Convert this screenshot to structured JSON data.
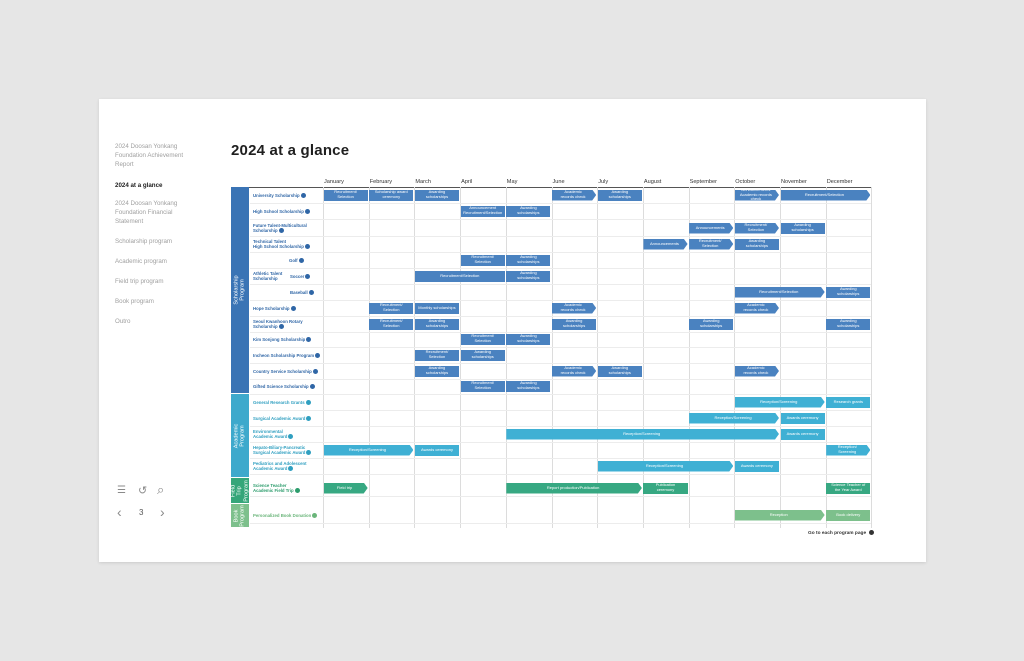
{
  "nav": [
    {
      "label": "2024 Doosan Yonkang\nFoundation Achievement\nReport",
      "active": false
    },
    {
      "label": "2024 at a glance",
      "active": true
    },
    {
      "label": "2024 Doosan Yonkang\nFoundation Financial\nStatement",
      "active": false
    },
    {
      "label": "Scholarship program",
      "active": false
    },
    {
      "label": "Academic program",
      "active": false
    },
    {
      "label": "Field trip program",
      "active": false
    },
    {
      "label": "Book program",
      "active": false
    },
    {
      "label": "Outro",
      "active": false
    }
  ],
  "tools": {
    "page": "3",
    "menu_icon": "☰",
    "refresh_icon": "↺",
    "search_icon": "⌕",
    "prev_icon": "‹",
    "next_icon": "›"
  },
  "title": "2024 at a glance",
  "months": [
    "January",
    "February",
    "March",
    "April",
    "May",
    "June",
    "July",
    "August",
    "September",
    "October",
    "November",
    "December"
  ],
  "categories": [
    {
      "label": "Scholarship Program",
      "color": "#3a74b5",
      "rows": [
        0,
        13
      ]
    },
    {
      "label": "Academic Program",
      "color": "#3ea9cc",
      "rows": [
        14,
        18
      ]
    },
    {
      "label": "Field Trip\nProgram",
      "color": "#35a679",
      "rows": [
        19,
        19
      ]
    },
    {
      "label": "Book\nProgram",
      "color": "#7dc08c",
      "rows": [
        20,
        20
      ]
    }
  ],
  "rows": [
    {
      "label": "University Scholarship",
      "color": "blue",
      "arrow": true
    },
    {
      "label": "High School Scholarship",
      "color": "blue",
      "arrow": true
    },
    {
      "label": "Future Talent-Multicultural\nScholarship",
      "color": "blue",
      "arrow": true
    },
    {
      "label": "Technical Talent\nHigh School Scholarship",
      "color": "blue",
      "arrow": true
    },
    {
      "label": "Athletic Talent\nScholarship",
      "color": "blue",
      "arrow": false,
      "sub": [
        {
          "label": "Golf",
          "arrow": true
        },
        {
          "label": "Soccer",
          "arrow": true
        },
        {
          "label": "Baseball",
          "arrow": true
        }
      ]
    },
    {
      "label": "Hope Scholarship",
      "color": "blue",
      "arrow": true
    },
    {
      "label": "Seoul Kwanhoon Rotary\nScholarship",
      "color": "blue",
      "arrow": true
    },
    {
      "label": "Kim Sonjong Scholarship",
      "color": "blue",
      "arrow": true
    },
    {
      "label": "Incheon Scholarship Program",
      "color": "blue",
      "arrow": true
    },
    {
      "label": "Country Service Scholarship",
      "color": "blue",
      "arrow": true
    },
    {
      "label": "Gifted Science Scholarship",
      "color": "blue",
      "arrow": true
    },
    {
      "label": "General Research Grants",
      "color": "teal",
      "arrow": true
    },
    {
      "label": "Surgical Academic Award",
      "color": "teal",
      "arrow": true
    },
    {
      "label": "Environmental\nAcademic Award",
      "color": "teal",
      "arrow": true
    },
    {
      "label": "Hepato-Biliary-Pancreatic\nSurgical Academic Award",
      "color": "teal",
      "arrow": true
    },
    {
      "label": "Pediatrics and Adolescent\nAcademic Award",
      "color": "teal",
      "arrow": true
    },
    {
      "label": "Science Teacher\nAcademic Field Trip",
      "color": "green",
      "arrow": true
    },
    {
      "label": "Personalized Book Donation",
      "color": "lgreen",
      "arrow": true
    }
  ],
  "bars": [
    {
      "row": 0,
      "start": 0,
      "end": 1,
      "label": "Recruitment/\nSelection",
      "color": "#4a82c0"
    },
    {
      "row": 0,
      "start": 1,
      "end": 2,
      "label": "Scholarship award\nceremony",
      "color": "#4a82c0"
    },
    {
      "row": 0,
      "start": 2,
      "end": 3,
      "label": "Awarding\nscholarships",
      "color": "#4a82c0"
    },
    {
      "row": 0,
      "start": 5,
      "end": 6,
      "label": "Academic\nrecords check",
      "color": "#4a82c0",
      "arrow": true
    },
    {
      "row": 0,
      "start": 6,
      "end": 7,
      "label": "Awarding\nscholarships",
      "color": "#4a82c0"
    },
    {
      "row": 0,
      "start": 9,
      "end": 10,
      "label": "Announcements\nAcademic records check",
      "color": "#4a82c0",
      "arrow": true
    },
    {
      "row": 0,
      "start": 10,
      "end": 12,
      "label": "Recruitment/Selection",
      "color": "#4a82c0",
      "arrow": true
    },
    {
      "row": 1,
      "start": 3,
      "end": 4,
      "label": "Announcement\nRecruitment/Selection",
      "color": "#4a82c0"
    },
    {
      "row": 1,
      "start": 4,
      "end": 5,
      "label": "Awarding\nscholarships",
      "color": "#4a82c0"
    },
    {
      "row": 2,
      "start": 8,
      "end": 9,
      "label": "Announcements",
      "color": "#4a82c0",
      "arrow": true
    },
    {
      "row": 2,
      "start": 9,
      "end": 10,
      "label": "Recruitment/\nSelection",
      "color": "#4a82c0",
      "arrow": true
    },
    {
      "row": 2,
      "start": 10,
      "end": 11,
      "label": "Awarding\nscholarships",
      "color": "#4a82c0"
    },
    {
      "row": 3,
      "start": 7,
      "end": 8,
      "label": "Announcements",
      "color": "#4a82c0",
      "arrow": true
    },
    {
      "row": 3,
      "start": 8,
      "end": 9,
      "label": "Recruitment/\nSelection",
      "color": "#4a82c0",
      "arrow": true
    },
    {
      "row": 3,
      "start": 9,
      "end": 10,
      "label": "Awarding\nscholarships",
      "color": "#4a82c0"
    },
    {
      "row": 4,
      "sub": 0,
      "start": 3,
      "end": 4,
      "label": "Recruitment/\nSelection",
      "color": "#4a82c0"
    },
    {
      "row": 4,
      "sub": 0,
      "start": 4,
      "end": 5,
      "label": "Awarding\nscholarships",
      "color": "#4a82c0"
    },
    {
      "row": 4,
      "sub": 1,
      "start": 2,
      "end": 4,
      "label": "Recruitment/Selection",
      "color": "#4a82c0"
    },
    {
      "row": 4,
      "sub": 1,
      "start": 4,
      "end": 5,
      "label": "Awarding\nscholarships",
      "color": "#4a82c0"
    },
    {
      "row": 4,
      "sub": 2,
      "start": 9,
      "end": 11,
      "label": "Recruitment/Selection",
      "color": "#4a82c0",
      "arrow": true
    },
    {
      "row": 4,
      "sub": 2,
      "start": 11,
      "end": 12,
      "label": "Awarding\nscholarships",
      "color": "#4a82c0"
    },
    {
      "row": 5,
      "start": 1,
      "end": 2,
      "label": "Recruitment/\nSelection",
      "color": "#4a82c0"
    },
    {
      "row": 5,
      "start": 2,
      "end": 3,
      "label": "Monthly scholarships",
      "color": "#4a82c0"
    },
    {
      "row": 5,
      "start": 5,
      "end": 6,
      "label": "Academic\nrecords check",
      "color": "#4a82c0",
      "arrow": true
    },
    {
      "row": 5,
      "start": 9,
      "end": 10,
      "label": "Academic\nrecords check",
      "color": "#4a82c0",
      "arrow": true
    },
    {
      "row": 6,
      "start": 1,
      "end": 2,
      "label": "Recruitment/\nSelection",
      "color": "#4a82c0"
    },
    {
      "row": 6,
      "start": 2,
      "end": 3,
      "label": "Awarding\nscholarships",
      "color": "#4a82c0"
    },
    {
      "row": 6,
      "start": 5,
      "end": 6,
      "label": "Awarding\nscholarships",
      "color": "#4a82c0"
    },
    {
      "row": 6,
      "start": 8,
      "end": 9,
      "label": "Awarding\nscholarships",
      "color": "#4a82c0"
    },
    {
      "row": 6,
      "start": 11,
      "end": 12,
      "label": "Awarding\nscholarships",
      "color": "#4a82c0"
    },
    {
      "row": 7,
      "start": 3,
      "end": 4,
      "label": "Recruitment/\nSelection",
      "color": "#4a82c0"
    },
    {
      "row": 7,
      "start": 4,
      "end": 5,
      "label": "Awarding\nscholarships",
      "color": "#4a82c0"
    },
    {
      "row": 8,
      "start": 2,
      "end": 3,
      "label": "Recruitment/\nSelection",
      "color": "#4a82c0"
    },
    {
      "row": 8,
      "start": 3,
      "end": 4,
      "label": "Awarding\nscholarships",
      "color": "#4a82c0"
    },
    {
      "row": 9,
      "start": 2,
      "end": 3,
      "label": "Awarding\nscholarships",
      "color": "#4a82c0"
    },
    {
      "row": 9,
      "start": 5,
      "end": 6,
      "label": "Academic\nrecords check",
      "color": "#4a82c0",
      "arrow": true
    },
    {
      "row": 9,
      "start": 6,
      "end": 7,
      "label": "Awarding\nscholarships",
      "color": "#4a82c0"
    },
    {
      "row": 9,
      "start": 9,
      "end": 10,
      "label": "Academic\nrecords check",
      "color": "#4a82c0",
      "arrow": true
    },
    {
      "row": 10,
      "start": 3,
      "end": 4,
      "label": "Recruitment/\nSelection",
      "color": "#4a82c0"
    },
    {
      "row": 10,
      "start": 4,
      "end": 5,
      "label": "Awarding\nscholarships",
      "color": "#4a82c0"
    },
    {
      "row": 11,
      "start": 9,
      "end": 11,
      "label": "Reception/Screening",
      "color": "#3fb0d4",
      "arrow": true
    },
    {
      "row": 11,
      "start": 11,
      "end": 12,
      "label": "Research grants",
      "color": "#3fb0d4"
    },
    {
      "row": 12,
      "start": 8,
      "end": 10,
      "label": "Reception/Screening",
      "color": "#3fb0d4",
      "arrow": true
    },
    {
      "row": 12,
      "start": 10,
      "end": 11,
      "label": "Awards ceremony",
      "color": "#3fb0d4"
    },
    {
      "row": 13,
      "start": 4,
      "end": 10,
      "label": "Reception/Screening",
      "color": "#3fb0d4",
      "arrow": true
    },
    {
      "row": 13,
      "start": 10,
      "end": 11,
      "label": "Awards ceremony",
      "color": "#3fb0d4"
    },
    {
      "row": 14,
      "start": 0,
      "end": 2,
      "label": "Reception/Screening",
      "color": "#3fb0d4",
      "arrow": true
    },
    {
      "row": 14,
      "start": 2,
      "end": 3,
      "label": "Awards ceremony",
      "color": "#3fb0d4"
    },
    {
      "row": 14,
      "start": 11,
      "end": 12,
      "label": "Reception/\nScreening",
      "color": "#3fb0d4",
      "arrow": true
    },
    {
      "row": 15,
      "start": 6,
      "end": 9,
      "label": "Reception/Screening",
      "color": "#3fb0d4",
      "arrow": true
    },
    {
      "row": 15,
      "start": 9,
      "end": 10,
      "label": "Awards ceremony",
      "color": "#3fb0d4"
    },
    {
      "row": 16,
      "start": 0,
      "end": 1,
      "label": "Field trip",
      "color": "#37a882",
      "arrow": true
    },
    {
      "row": 16,
      "start": 4,
      "end": 7,
      "label": "Report production/Publication",
      "color": "#37a882",
      "arrow": true
    },
    {
      "row": 16,
      "start": 7,
      "end": 8,
      "label": "Publication\nceremony",
      "color": "#37a882"
    },
    {
      "row": 16,
      "start": 11,
      "end": 12,
      "label": "Science Teacher of\nthe Year Award",
      "color": "#37a882"
    },
    {
      "row": 17,
      "start": 9,
      "end": 11,
      "label": "Reception",
      "color": "#7dc08c",
      "arrow": true
    },
    {
      "row": 17,
      "start": 11,
      "end": 12,
      "label": "Book delivery",
      "color": "#7dc08c"
    }
  ],
  "footer": {
    "label": "Go to each program page"
  }
}
